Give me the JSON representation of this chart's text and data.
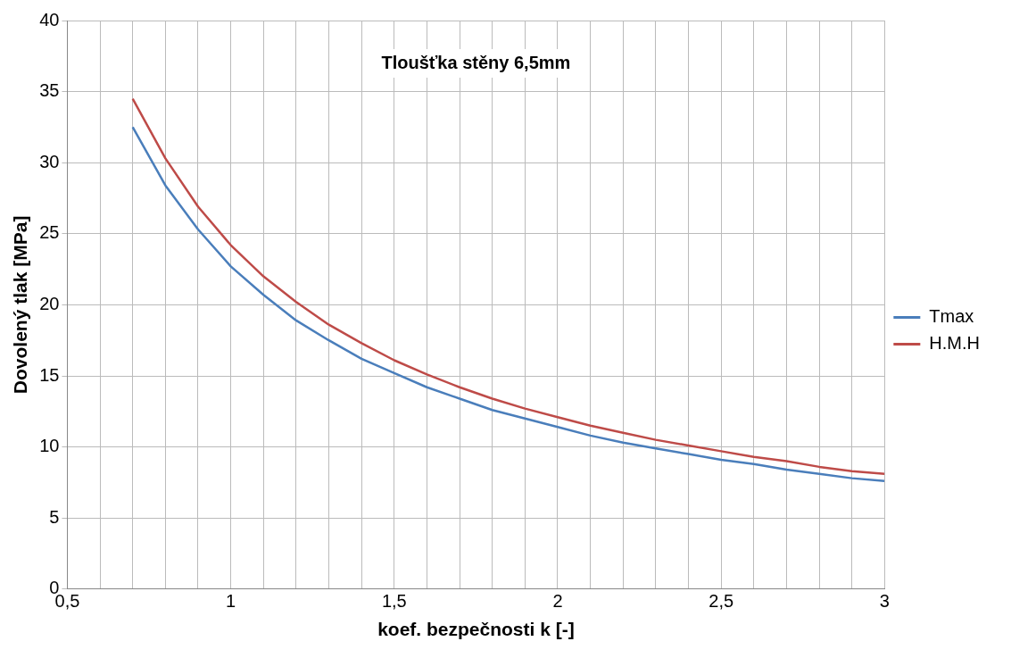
{
  "chart_data": {
    "type": "line",
    "title": "Tloušťka stěny 6,5mm",
    "xlabel": "koef. bezpečnosti k [-]",
    "ylabel": "Dovolený tlak [MPa]",
    "x": [
      0.7,
      0.8,
      0.9,
      1.0,
      1.1,
      1.2,
      1.3,
      1.4,
      1.5,
      1.6,
      1.7,
      1.8,
      1.9,
      2.0,
      2.1,
      2.2,
      2.3,
      2.4,
      2.5,
      2.6,
      2.7,
      2.8,
      2.9,
      3.0
    ],
    "series": [
      {
        "name": "Tmax",
        "color": "#4a7ebb",
        "values": [
          32.5,
          28.4,
          25.3,
          22.7,
          20.7,
          18.9,
          17.5,
          16.2,
          15.2,
          14.2,
          13.4,
          12.6,
          12.0,
          11.4,
          10.8,
          10.3,
          9.9,
          9.5,
          9.1,
          8.8,
          8.4,
          8.1,
          7.8,
          7.6
        ]
      },
      {
        "name": "H.M.H",
        "color": "#be4b48",
        "values": [
          34.5,
          30.3,
          26.9,
          24.2,
          22.0,
          20.2,
          18.6,
          17.3,
          16.1,
          15.1,
          14.2,
          13.4,
          12.7,
          12.1,
          11.5,
          11.0,
          10.5,
          10.1,
          9.7,
          9.3,
          9.0,
          8.6,
          8.3,
          8.1
        ]
      }
    ],
    "xlim": [
      0.5,
      3
    ],
    "xticks": [
      {
        "value": 0.5,
        "label": "0,5"
      },
      {
        "value": 0.6,
        "label": null
      },
      {
        "value": 0.7,
        "label": null
      },
      {
        "value": 0.8,
        "label": null
      },
      {
        "value": 0.9,
        "label": null
      },
      1,
      {
        "value": 1.1,
        "label": null
      },
      {
        "value": 1.2,
        "label": null
      },
      {
        "value": 1.3,
        "label": null
      },
      {
        "value": 1.4,
        "label": null
      },
      {
        "value": 1.5,
        "label": "1,5"
      },
      {
        "value": 1.6,
        "label": null
      },
      {
        "value": 1.7,
        "label": null
      },
      {
        "value": 1.8,
        "label": null
      },
      {
        "value": 1.9,
        "label": null
      },
      2,
      {
        "value": 2.1,
        "label": null
      },
      {
        "value": 2.2,
        "label": null
      },
      {
        "value": 2.3,
        "label": null
      },
      {
        "value": 2.4,
        "label": null
      },
      {
        "value": 2.5,
        "label": "2,5"
      },
      {
        "value": 2.6,
        "label": null
      },
      {
        "value": 2.7,
        "label": null
      },
      {
        "value": 2.8,
        "label": null
      },
      {
        "value": 2.9,
        "label": null
      },
      3
    ],
    "ylim": [
      0,
      40
    ],
    "yticks": [
      0,
      5,
      10,
      15,
      20,
      25,
      30,
      35,
      40
    ],
    "grid": true,
    "legend": "right",
    "marker": "none",
    "line_style": "solid"
  }
}
